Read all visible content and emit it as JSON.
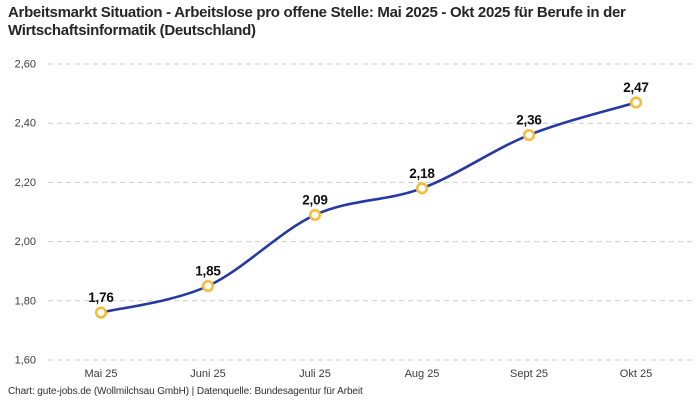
{
  "title": "Arbeitsmarkt Situation - Arbeitslose pro offene Stelle: Mai 2025 - Okt 2025 für Berufe in der Wirtschaftsinformatik (Deutschland)",
  "footer": "Chart: gute-jobs.de (Wollmilchsau GmbH) | Datenquelle: Bundesagentur für Arbeit",
  "colors": {
    "line": "#2639a0",
    "marker_ring": "#f6bd3a",
    "marker_fill": "#ffffff",
    "grid": "#cbcbcb",
    "title_text": "#262626",
    "data_label_text": "#0f0f0f",
    "tick_text": "#3c3c3c",
    "background": "#ffffff"
  },
  "chart_data": {
    "type": "line",
    "title": "Arbeitsmarkt Situation - Arbeitslose pro offene Stelle: Mai 2025 - Okt 2025 für Berufe in der Wirtschaftsinformatik (Deutschland)",
    "categories": [
      "Mai 25",
      "Juni 25",
      "Juli 25",
      "Aug 25",
      "Sept 25",
      "Okt 25"
    ],
    "values": [
      1.76,
      1.85,
      2.09,
      2.18,
      2.36,
      2.47
    ],
    "value_labels": [
      "1,76",
      "1,85",
      "2,09",
      "2,18",
      "2,36",
      "2,47"
    ],
    "xlabel": "",
    "ylabel": "",
    "ylim": [
      1.6,
      2.6
    ],
    "ytick_step": 0.2,
    "ytick_labels": [
      "1,60",
      "1,80",
      "2,00",
      "2,20",
      "2,40",
      "2,60"
    ],
    "grid": "horizontal-dashed",
    "legend": "none",
    "line_style": "smooth",
    "marker_style": "open-circle",
    "attribution": "Chart: gute-jobs.de (Wollmilchsau GmbH) | Datenquelle: Bundesagentur für Arbeit"
  }
}
